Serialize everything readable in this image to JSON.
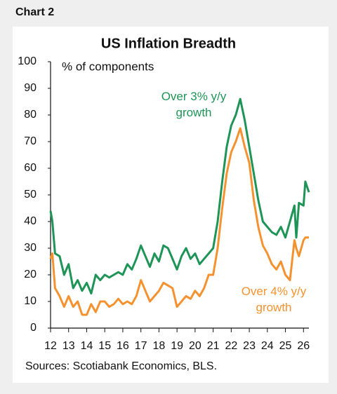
{
  "page_label": "Chart 2",
  "chart_data": {
    "type": "line",
    "title": "US Inflation Breadth",
    "y_label": "% of components",
    "source": "Sources: Scotiabank Economics, BLS.",
    "x": [
      12,
      12.1,
      12.25,
      12.5,
      12.75,
      13,
      13.25,
      13.5,
      13.75,
      14,
      14.25,
      14.5,
      14.75,
      15,
      15.25,
      15.5,
      15.75,
      16,
      16.25,
      16.5,
      16.75,
      17,
      17.25,
      17.5,
      17.75,
      18,
      18.25,
      18.5,
      18.75,
      19,
      19.25,
      19.5,
      19.75,
      20,
      20.25,
      20.5,
      20.75,
      21,
      21.25,
      21.5,
      21.75,
      22,
      22.25,
      22.5,
      22.75,
      23,
      23.25,
      23.5,
      23.75,
      24,
      24.25,
      24.5,
      24.75,
      25,
      25.25,
      25.5,
      25.6,
      25.75,
      26,
      26.1,
      26.3
    ],
    "series": [
      {
        "name": "Over 3% y/y growth",
        "color": "#1e9457",
        "values": [
          44,
          40,
          28,
          27,
          20,
          24,
          15,
          18,
          14,
          17,
          13,
          20,
          18,
          20,
          19,
          20,
          21,
          20,
          24,
          22,
          26,
          31,
          27,
          23,
          28,
          25,
          31,
          30,
          26,
          22,
          27,
          30,
          26,
          28,
          24,
          26,
          28,
          30,
          40,
          55,
          68,
          76,
          80,
          86,
          78,
          68,
          58,
          48,
          40,
          38,
          36,
          35,
          38,
          34,
          40,
          46,
          34,
          47,
          46,
          55,
          51
        ]
      },
      {
        "name": "Over 4% y/y growth",
        "color": "#f5922f",
        "values": [
          26,
          28,
          15,
          12,
          8,
          12,
          8,
          10,
          5,
          5,
          9,
          6,
          10,
          10,
          8,
          9,
          11,
          9,
          10,
          9,
          12,
          18,
          14,
          10,
          12,
          14,
          17,
          16,
          15,
          8,
          10,
          12,
          11,
          14,
          12,
          15,
          20,
          20,
          30,
          45,
          58,
          66,
          70,
          75,
          68,
          62,
          48,
          38,
          31,
          28,
          24,
          22,
          25,
          20,
          18,
          33,
          30,
          27,
          33,
          34,
          34
        ]
      }
    ],
    "xlim": [
      12,
      26.3
    ],
    "xticks": [
      12,
      13,
      14,
      15,
      16,
      17,
      18,
      19,
      20,
      21,
      22,
      23,
      24,
      25,
      26
    ],
    "ylim": [
      0,
      100
    ],
    "yticks": [
      0,
      10,
      20,
      30,
      40,
      50,
      60,
      70,
      80,
      90,
      100
    ],
    "grid": false
  }
}
